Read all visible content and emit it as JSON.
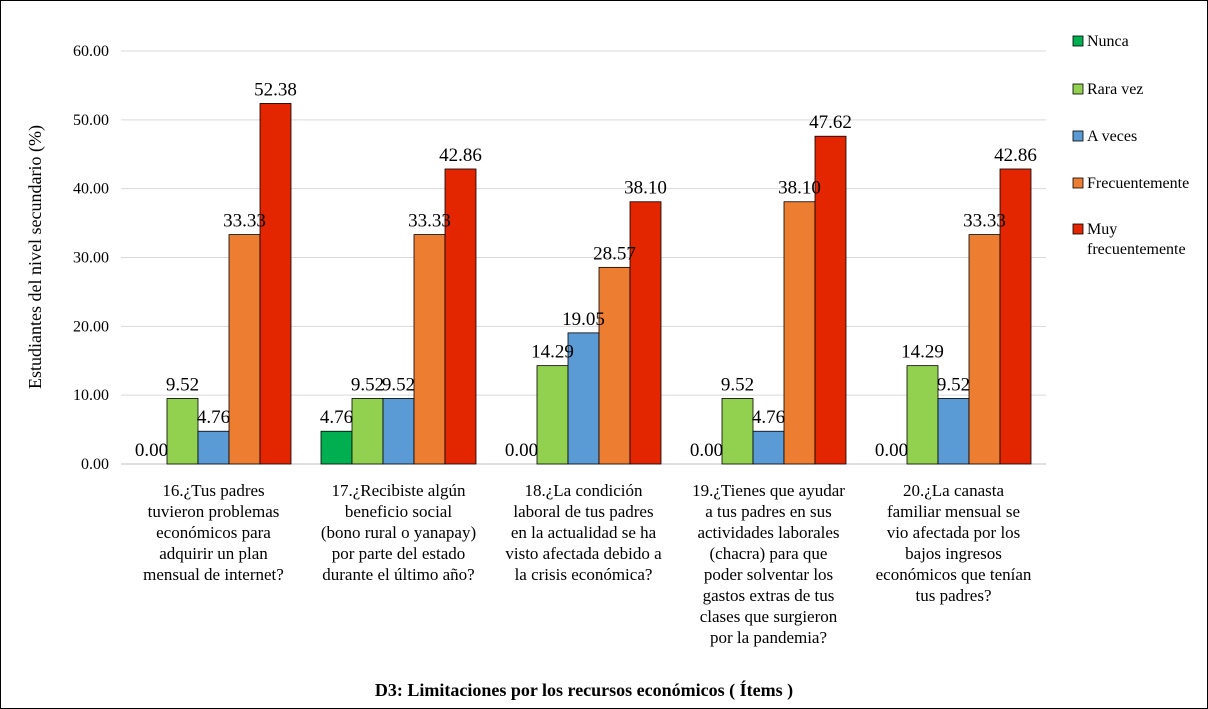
{
  "chart_data": {
    "type": "bar",
    "xlabel": "D3: Limitaciones por los recursos económicos ( Ítems )",
    "ylabel": "Estudiantes del nivel secundario (%)",
    "ylim": [
      0,
      60
    ],
    "yticks": [
      "0.00",
      "10.00",
      "20.00",
      "30.00",
      "40.00",
      "50.00",
      "60.00"
    ],
    "grid": "horizontal",
    "legend_position": "right",
    "categories": [
      [
        "16.¿Tus padres",
        "tuvieron problemas",
        "económicos para",
        "adquirir un plan",
        "mensual de internet?"
      ],
      [
        "17.¿Recibiste algún",
        "beneficio  social",
        "(bono rural o yanapay)",
        "por parte del estado",
        "durante el último año?"
      ],
      [
        "18.¿La condición",
        "laboral de tus padres",
        "en la actualidad se ha",
        "visto afectada debido a",
        "la crisis económica?"
      ],
      [
        "19.¿Tienes que ayudar",
        "a tus padres en sus",
        "actividades laborales",
        "(chacra) para que",
        "poder solventar los",
        "gastos extras de tus",
        "clases que surgieron",
        "por la pandemia?"
      ],
      [
        "20.¿La canasta",
        "familiar mensual se",
        "vio afectada por los",
        "bajos ingresos",
        "económicos que tenían",
        "tus padres?"
      ]
    ],
    "series": [
      {
        "name": "Nunca",
        "color": "#00b050",
        "values": [
          0.0,
          4.76,
          0.0,
          0.0,
          0.0
        ],
        "labels": [
          "0.00",
          "4.76",
          "0.00",
          "0.00",
          "0.00"
        ]
      },
      {
        "name": "Rara vez",
        "color": "#92d050",
        "values": [
          9.52,
          9.52,
          14.29,
          9.52,
          14.29
        ],
        "labels": [
          "9.52",
          "9.52",
          "14.29",
          "9.52",
          "14.29"
        ]
      },
      {
        "name": "A veces",
        "color": "#5b9bd5",
        "values": [
          4.76,
          9.52,
          19.05,
          4.76,
          9.52
        ],
        "labels": [
          "4.76",
          "9.52",
          "19.05",
          "4.76",
          "9.52"
        ]
      },
      {
        "name": "Frecuentemente",
        "color": "#ed7d31",
        "values": [
          33.33,
          33.33,
          28.57,
          38.1,
          33.33
        ],
        "labels": [
          "33.33",
          "33.33",
          "28.57",
          "38.10",
          "33.33"
        ]
      },
      {
        "name": [
          "Muy",
          "frecuentemente"
        ],
        "color": "#e42600",
        "values": [
          52.38,
          42.86,
          38.1,
          47.62,
          42.86
        ],
        "labels": [
          "52.38",
          "42.86",
          "38.10",
          "47.62",
          "42.86"
        ]
      }
    ]
  }
}
